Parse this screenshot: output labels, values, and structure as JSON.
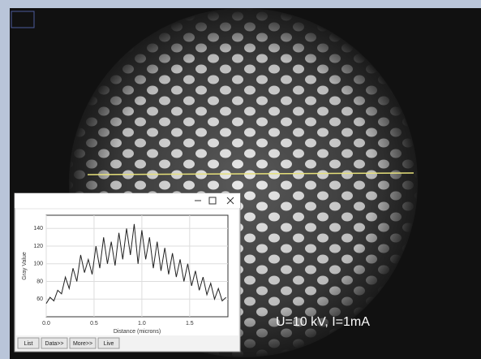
{
  "caption": "U=10 kV, I=1mA",
  "inset": {
    "buttons": [
      "List",
      "Data>>",
      "More>>",
      "Live"
    ]
  },
  "chart_data": {
    "type": "line",
    "x_label": "Distance (microns)",
    "y_label": "Gray Value",
    "x": [
      0,
      0.04,
      0.08,
      0.12,
      0.16,
      0.2,
      0.24,
      0.28,
      0.32,
      0.36,
      0.4,
      0.44,
      0.48,
      0.52,
      0.56,
      0.6,
      0.64,
      0.68,
      0.72,
      0.76,
      0.8,
      0.84,
      0.88,
      0.92,
      0.96,
      1.0,
      1.04,
      1.08,
      1.12,
      1.16,
      1.2,
      1.24,
      1.28,
      1.32,
      1.36,
      1.4,
      1.44,
      1.48,
      1.52,
      1.56,
      1.6,
      1.64,
      1.68,
      1.72,
      1.76,
      1.8,
      1.84,
      1.88
    ],
    "series": [
      {
        "name": "Gray Value",
        "color": "#222222",
        "values": [
          55,
          62,
          58,
          70,
          66,
          85,
          72,
          95,
          80,
          110,
          90,
          105,
          88,
          120,
          95,
          130,
          100,
          125,
          98,
          135,
          105,
          140,
          110,
          145,
          100,
          138,
          105,
          130,
          95,
          125,
          92,
          118,
          88,
          112,
          85,
          105,
          80,
          100,
          75,
          92,
          70,
          85,
          65,
          78,
          60,
          72,
          58,
          62
        ]
      }
    ],
    "xlim": [
      0,
      1.9
    ],
    "ylim": [
      40,
      155
    ],
    "xticks": [
      {
        "value": 0,
        "label": "0.0"
      },
      0.5,
      {
        "value": 1,
        "label": "1.0"
      },
      1.5
    ],
    "yticks": [
      60,
      80,
      100,
      120,
      140
    ],
    "grid": true
  }
}
